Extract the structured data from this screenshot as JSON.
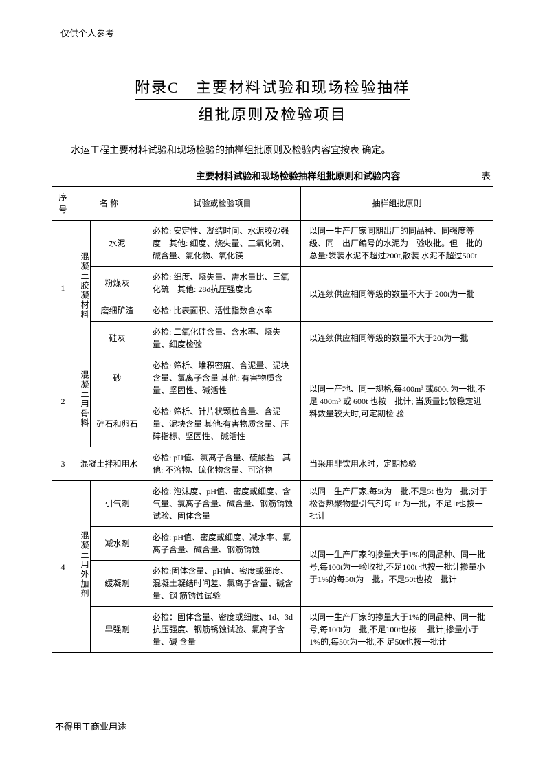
{
  "header_note": "仅供个人参考",
  "footer_note": "不得用于商业用途",
  "title_line1": "附录C　主要材料试验和现场检验抽样",
  "title_line2": "组批原则及检验项目",
  "intro": "水运工程主要材料试验和现场检验的抽样组批原则及检验内容宜按表 确定。",
  "table_caption": "主要材料试验和现场检验抽样组批原则和试验内容",
  "table_caption_right": "表",
  "headers": {
    "seq": "序号",
    "name": "名 称",
    "test": "试验或检验项目",
    "rule": "抽样组批原则"
  },
  "rows": {
    "r1": {
      "seq": "1",
      "cat": "混凝土胶凝材料",
      "items": {
        "a": {
          "name": "水泥",
          "test": "必检: 安定性、凝结时间、水泥胶砂强度　其他: 细度、烧失量、三氧化硫、碱含量、氯化物、氧化镁",
          "rule": "以同一生产厂家同期出厂的同品种、同强度等级、同一出厂编号的水泥为一验收批。但一批的总量:袋装水泥不超过200t,散装 水泥不超过500t"
        },
        "b": {
          "name": "粉煤灰",
          "test": "必检: 细度、烧失量、需水量比、三氧化硫　其他: 28d抗压强度比",
          "rule": "以连续供应相同等级的数量不大于 200t为一批"
        },
        "c": {
          "name": "磨细矿渣",
          "test": "必检: 比表面积、活性指数含水率",
          "rule": ""
        },
        "d": {
          "name": "硅灰",
          "test": "必检: 二氧化硅含量、含水率、烧失量、细度检验",
          "rule": "以连续供应相同等级的数量不大于20t为一批"
        }
      }
    },
    "r2": {
      "seq": "2",
      "cat": "混凝土用骨料",
      "items": {
        "a": {
          "name": "砂",
          "test": "必检: 筛析、堆积密度、含泥量、泥块含量、氯离子含量 其他: 有害物质含量、坚固性、碱活性"
        },
        "b": {
          "name": "碎石和卵石",
          "test": "必检: 筛析、针片状颗粒含量、含泥量、泥块含量 其他:有害物质含量、压碎指标、坚固性、\n碱活性"
        }
      },
      "rule": "以同一产地、同一规格,每400m³ 或600t 为一批,不足 400m³ 或 600t 也按一批计; 当质量比较稳定进料数量较大时,可定期检 验"
    },
    "r3": {
      "seq": "3",
      "name": "混凝土拌和用水",
      "test": "必检: pH值、氯离子含量、硫酸盐　其他: 不溶物、硫化物含量、可溶物",
      "rule": "当采用非饮用水时，定期检验"
    },
    "r4": {
      "seq": "4",
      "cat": "混凝土用外加剂",
      "items": {
        "a": {
          "name": "引气剂",
          "test": "必检: 泡沫度、pH值、密度或细度、含气量、氯离子含量、碱含量、钢筋锈蚀试验、固体含量",
          "rule": "以同一生产厂家,每5t为一批,不足5t 也为一批;对于松香热聚物型引气剂每 1t 为一批，不足1t也按一批计"
        },
        "b": {
          "name": "减水剂",
          "test": "必检: pH值、密度或细度、减水率、氯离子含量、碱含量、钢筋锈蚀"
        },
        "c": {
          "name": "缓凝剂",
          "test": "必检:固体含量、pH值、密度或细度、混凝土凝结时间差、氯离子含量、碱含量、钢 筋锈蚀试验"
        },
        "bc_rule": "以同一生产厂家的掺量大于1%的同品种、同一批号,每100t为一验收批,不足100t 也按一批计掺量小于1%的每50t为一批，不足50t也按一批计",
        "d": {
          "name": "早强剂",
          "test": "必检：固体含量、密度或细度、1d、3d 抗压强度、钢筋锈蚀试验、氯离子含量、碱 含量",
          "rule": "以同一生产厂家的掺量大于1%的同品种、同一批号,每100t为一批,不足100t也按 一批计;掺量小于1%的,每50t为一批,不 足50t也按一批计"
        }
      }
    }
  }
}
